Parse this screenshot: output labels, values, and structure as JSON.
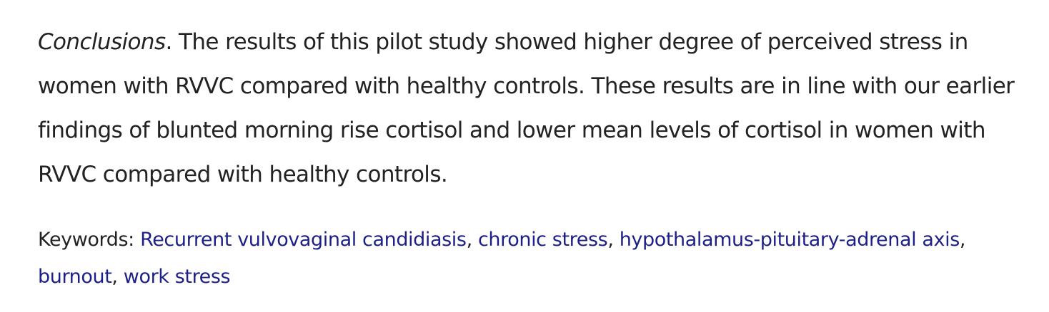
{
  "conclusions": {
    "label": "Conclusions",
    "label_suffix": ".",
    "text": " The results of this pilot study showed higher degree of perceived stress in women with RVVC compared with healthy controls. These results are in line with our earlier findings of blunted morning rise cortisol and lower mean levels of cortisol in women with RVVC compared with healthy controls."
  },
  "keywords": {
    "label": "Keywords: ",
    "separator": ", ",
    "items": [
      "Recurrent vulvovaginal candidiasis",
      "chronic stress",
      "hypothalamus-pituitary-adrenal axis",
      "burnout",
      "work stress"
    ]
  },
  "colors": {
    "text": "#222222",
    "link": "#1c1f8a",
    "background": "#ffffff"
  }
}
